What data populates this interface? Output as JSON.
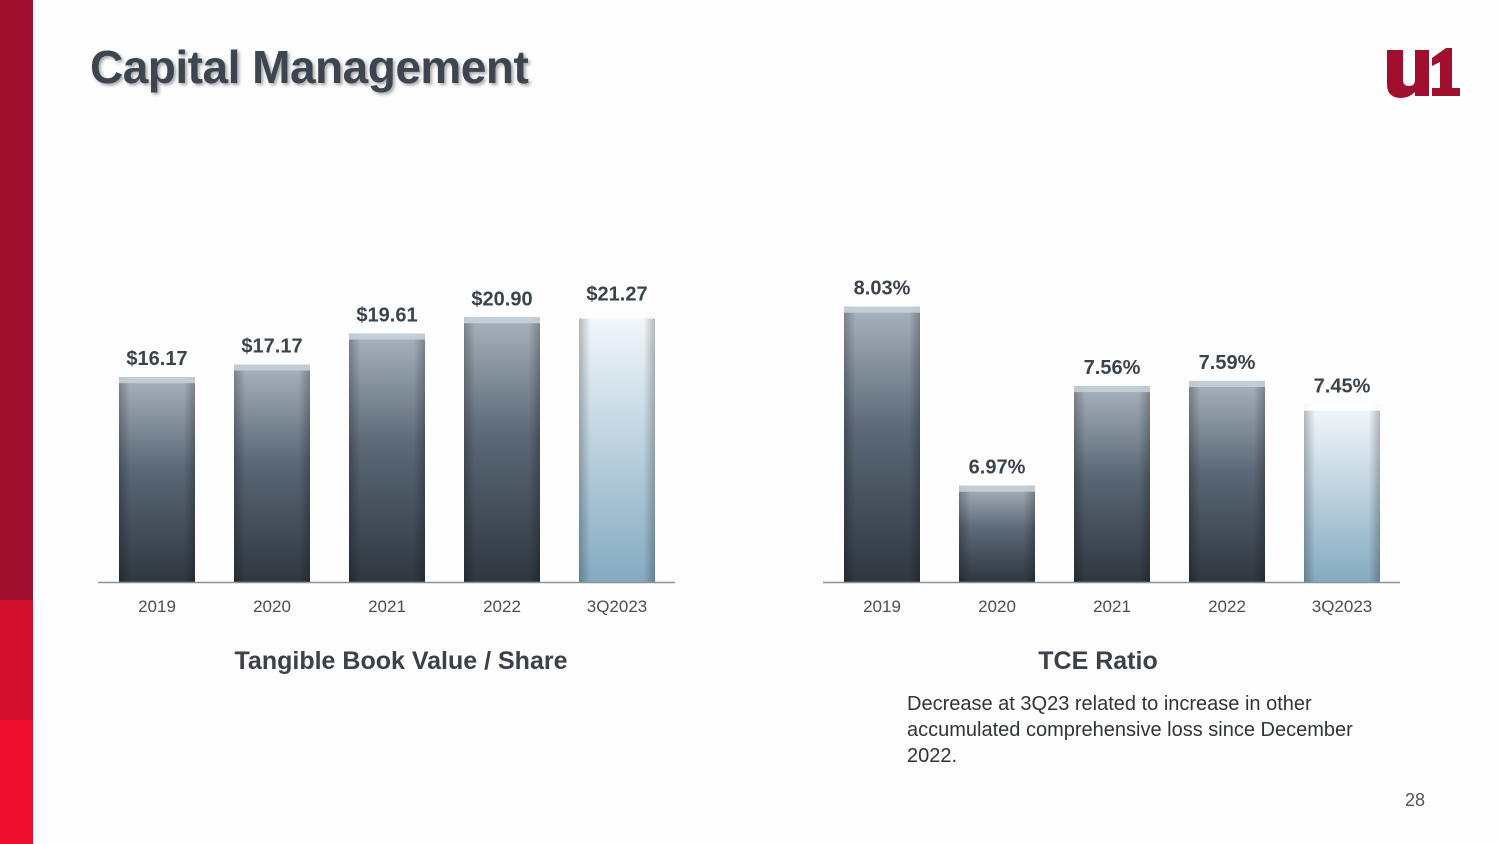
{
  "title": "Capital Management",
  "logo_alt": "logo",
  "chart_data": [
    {
      "type": "bar",
      "title": "Tangible Book Value / Share",
      "categories": [
        "2019",
        "2020",
        "2021",
        "2022",
        "3Q2023"
      ],
      "values": [
        16.17,
        17.17,
        19.61,
        20.9,
        21.27
      ],
      "labels": [
        "$16.17",
        "$17.17",
        "$19.61",
        "$20.90",
        "$21.27"
      ],
      "ylim": [
        0,
        24
      ],
      "highlight_last": true,
      "grid": false
    },
    {
      "type": "bar",
      "title": "TCE Ratio",
      "categories": [
        "2019",
        "2020",
        "2021",
        "2022",
        "3Q2023"
      ],
      "values": [
        8.03,
        6.97,
        7.56,
        7.59,
        7.45
      ],
      "labels": [
        "8.03%",
        "6.97%",
        "7.56%",
        "7.59%",
        "7.45%"
      ],
      "ylim": [
        6.4,
        8.2
      ],
      "highlight_last": true,
      "grid": false
    }
  ],
  "note": "Decrease at 3Q23 related to increase in other accumulated comprehensive loss since December 2022.",
  "page_number": "28",
  "colors": {
    "brand_dark": "#a10f2e",
    "brand_mid": "#d1102d",
    "brand_light": "#ee0f2e",
    "bar_top": "#a9b3bd",
    "bar_bottom": "#2f3740",
    "highlight_top": "#f4f8fb",
    "highlight_bottom": "#84aac1",
    "title_text": "#3d4650"
  }
}
